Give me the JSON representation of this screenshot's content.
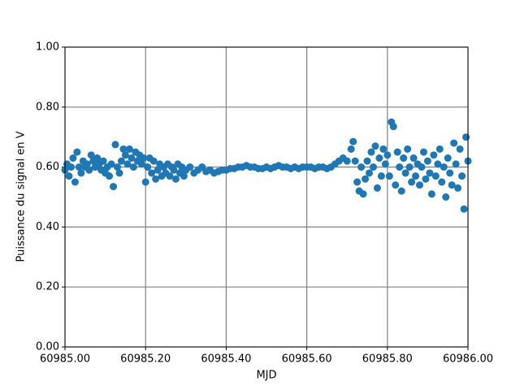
{
  "chart_data": {
    "type": "scatter",
    "x_label": "MJD",
    "y_label": "Puissance du signal en V",
    "color": "#1f77b4",
    "grid": true,
    "xlim": [
      60985.0,
      60986.0
    ],
    "xticks": [
      {
        "value": 60985.0,
        "label": "60985.00"
      },
      {
        "value": 60985.2,
        "label": "60985.20"
      },
      {
        "value": 60985.4,
        "label": "60985.40"
      },
      {
        "value": 60985.6,
        "label": "60985.60"
      },
      {
        "value": 60985.8,
        "label": "60985.80"
      },
      {
        "value": 60986.0,
        "label": "60986.00"
      }
    ],
    "ylim": [
      0,
      1
    ],
    "yticks": [
      {
        "value": 0,
        "label": "0.00"
      },
      {
        "value": 0.2,
        "label": "0.20"
      },
      {
        "value": 0.4,
        "label": "0.40"
      },
      {
        "value": 0.6,
        "label": "0.60"
      },
      {
        "value": 0.8,
        "label": "0.80"
      },
      {
        "value": 1,
        "label": "1.00"
      }
    ],
    "x": [
      60985.0,
      60985.005,
      60985.01,
      60985.015,
      60985.02,
      60985.025,
      60985.03,
      60985.035,
      60985.04,
      60985.045,
      60985.05,
      60985.055,
      60985.06,
      60985.065,
      60985.07,
      60985.075,
      60985.08,
      60985.085,
      60985.09,
      60985.095,
      60985.1,
      60985.105,
      60985.11,
      60985.115,
      60985.12,
      60985.125,
      60985.13,
      60985.135,
      60985.14,
      60985.145,
      60985.15,
      60985.155,
      60985.16,
      60985.165,
      60985.17,
      60985.175,
      60985.18,
      60985.185,
      60985.19,
      60985.195,
      60985.2,
      60985.205,
      60985.21,
      60985.215,
      60985.22,
      60985.225,
      60985.23,
      60985.235,
      60985.24,
      60985.245,
      60985.25,
      60985.255,
      60985.26,
      60985.265,
      60985.27,
      60985.275,
      60985.28,
      60985.285,
      60985.29,
      60985.295,
      60985.3,
      60985.31,
      60985.32,
      60985.33,
      60985.34,
      60985.35,
      60985.36,
      60985.37,
      60985.38,
      60985.39,
      60985.4,
      60985.41,
      60985.42,
      60985.43,
      60985.44,
      60985.45,
      60985.46,
      60985.47,
      60985.48,
      60985.49,
      60985.5,
      60985.51,
      60985.52,
      60985.53,
      60985.54,
      60985.55,
      60985.56,
      60985.57,
      60985.58,
      60985.59,
      60985.6,
      60985.61,
      60985.62,
      60985.63,
      60985.64,
      60985.65,
      60985.66,
      60985.67,
      60985.68,
      60985.69,
      60985.7,
      60985.71,
      60985.715,
      60985.72,
      60985.725,
      60985.73,
      60985.735,
      60985.74,
      60985.745,
      60985.75,
      60985.755,
      60985.76,
      60985.765,
      60985.77,
      60985.775,
      60985.78,
      60985.785,
      60985.79,
      60985.795,
      60985.8,
      60985.805,
      60985.81,
      60985.815,
      60985.82,
      60985.825,
      60985.83,
      60985.835,
      60985.84,
      60985.845,
      60985.85,
      60985.855,
      60985.86,
      60985.865,
      60985.87,
      60985.875,
      60985.88,
      60985.885,
      60985.89,
      60985.895,
      60985.9,
      60985.905,
      60985.91,
      60985.915,
      60985.92,
      60985.925,
      60985.93,
      60985.935,
      60985.94,
      60985.945,
      60985.95,
      60985.955,
      60985.96,
      60985.965,
      60985.97,
      60985.975,
      60985.98,
      60985.985,
      60985.99,
      60985.995,
      60986.0
    ],
    "values": [
      0.59,
      0.61,
      0.57,
      0.6,
      0.63,
      0.55,
      0.65,
      0.6,
      0.58,
      0.62,
      0.6,
      0.61,
      0.59,
      0.64,
      0.62,
      0.6,
      0.63,
      0.61,
      0.59,
      0.62,
      0.58,
      0.6,
      0.57,
      0.61,
      0.535,
      0.675,
      0.6,
      0.58,
      0.62,
      0.66,
      0.64,
      0.61,
      0.66,
      0.63,
      0.6,
      0.65,
      0.62,
      0.64,
      0.61,
      0.63,
      0.55,
      0.6,
      0.63,
      0.58,
      0.62,
      0.56,
      0.59,
      0.61,
      0.57,
      0.6,
      0.58,
      0.61,
      0.57,
      0.6,
      0.59,
      0.56,
      0.61,
      0.58,
      0.6,
      0.57,
      0.59,
      0.6,
      0.58,
      0.59,
      0.6,
      0.585,
      0.59,
      0.58,
      0.585,
      0.59,
      0.59,
      0.595,
      0.595,
      0.6,
      0.6,
      0.605,
      0.6,
      0.6,
      0.595,
      0.595,
      0.6,
      0.595,
      0.6,
      0.605,
      0.6,
      0.6,
      0.595,
      0.6,
      0.595,
      0.6,
      0.6,
      0.6,
      0.595,
      0.6,
      0.6,
      0.595,
      0.6,
      0.61,
      0.62,
      0.63,
      0.62,
      0.66,
      0.685,
      0.62,
      0.55,
      0.52,
      0.6,
      0.51,
      0.56,
      0.62,
      0.58,
      0.65,
      0.6,
      0.67,
      0.53,
      0.63,
      0.57,
      0.66,
      0.61,
      0.64,
      0.57,
      0.75,
      0.735,
      0.54,
      0.65,
      0.6,
      0.52,
      0.63,
      0.58,
      0.66,
      0.6,
      0.55,
      0.63,
      0.57,
      0.61,
      0.54,
      0.6,
      0.65,
      0.56,
      0.62,
      0.58,
      0.51,
      0.64,
      0.57,
      0.61,
      0.66,
      0.55,
      0.6,
      0.5,
      0.63,
      0.58,
      0.54,
      0.68,
      0.61,
      0.53,
      0.66,
      0.57,
      0.46,
      0.7,
      0.62
    ]
  }
}
